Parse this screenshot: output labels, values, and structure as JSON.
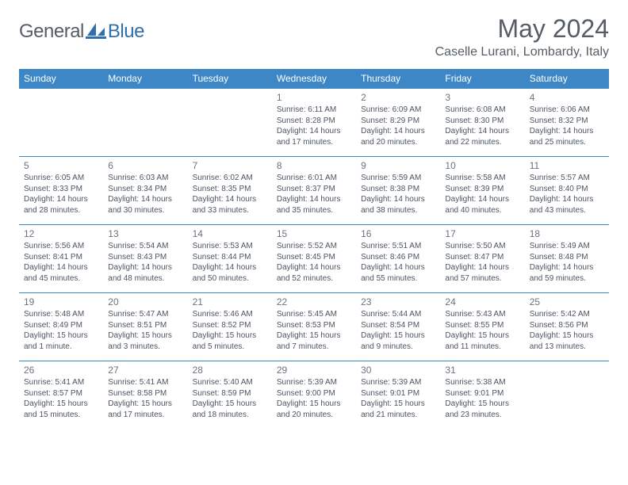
{
  "brand": {
    "name_part1": "General",
    "name_part2": "Blue"
  },
  "title": "May 2024",
  "location": "Caselle Lurani, Lombardy, Italy",
  "colors": {
    "header_bg": "#3d87c7",
    "header_text": "#ffffff",
    "border": "#3d87c7",
    "text_muted": "#555d66",
    "daynum": "#6b7280",
    "details": "#4b5563",
    "logo_accent": "#2f6fae"
  },
  "weekdays": [
    "Sunday",
    "Monday",
    "Tuesday",
    "Wednesday",
    "Thursday",
    "Friday",
    "Saturday"
  ],
  "cells": [
    {
      "day": "",
      "sunrise": "",
      "sunset": "",
      "daylight": ""
    },
    {
      "day": "",
      "sunrise": "",
      "sunset": "",
      "daylight": ""
    },
    {
      "day": "",
      "sunrise": "",
      "sunset": "",
      "daylight": ""
    },
    {
      "day": "1",
      "sunrise": "Sunrise: 6:11 AM",
      "sunset": "Sunset: 8:28 PM",
      "daylight": "Daylight: 14 hours and 17 minutes."
    },
    {
      "day": "2",
      "sunrise": "Sunrise: 6:09 AM",
      "sunset": "Sunset: 8:29 PM",
      "daylight": "Daylight: 14 hours and 20 minutes."
    },
    {
      "day": "3",
      "sunrise": "Sunrise: 6:08 AM",
      "sunset": "Sunset: 8:30 PM",
      "daylight": "Daylight: 14 hours and 22 minutes."
    },
    {
      "day": "4",
      "sunrise": "Sunrise: 6:06 AM",
      "sunset": "Sunset: 8:32 PM",
      "daylight": "Daylight: 14 hours and 25 minutes."
    },
    {
      "day": "5",
      "sunrise": "Sunrise: 6:05 AM",
      "sunset": "Sunset: 8:33 PM",
      "daylight": "Daylight: 14 hours and 28 minutes."
    },
    {
      "day": "6",
      "sunrise": "Sunrise: 6:03 AM",
      "sunset": "Sunset: 8:34 PM",
      "daylight": "Daylight: 14 hours and 30 minutes."
    },
    {
      "day": "7",
      "sunrise": "Sunrise: 6:02 AM",
      "sunset": "Sunset: 8:35 PM",
      "daylight": "Daylight: 14 hours and 33 minutes."
    },
    {
      "day": "8",
      "sunrise": "Sunrise: 6:01 AM",
      "sunset": "Sunset: 8:37 PM",
      "daylight": "Daylight: 14 hours and 35 minutes."
    },
    {
      "day": "9",
      "sunrise": "Sunrise: 5:59 AM",
      "sunset": "Sunset: 8:38 PM",
      "daylight": "Daylight: 14 hours and 38 minutes."
    },
    {
      "day": "10",
      "sunrise": "Sunrise: 5:58 AM",
      "sunset": "Sunset: 8:39 PM",
      "daylight": "Daylight: 14 hours and 40 minutes."
    },
    {
      "day": "11",
      "sunrise": "Sunrise: 5:57 AM",
      "sunset": "Sunset: 8:40 PM",
      "daylight": "Daylight: 14 hours and 43 minutes."
    },
    {
      "day": "12",
      "sunrise": "Sunrise: 5:56 AM",
      "sunset": "Sunset: 8:41 PM",
      "daylight": "Daylight: 14 hours and 45 minutes."
    },
    {
      "day": "13",
      "sunrise": "Sunrise: 5:54 AM",
      "sunset": "Sunset: 8:43 PM",
      "daylight": "Daylight: 14 hours and 48 minutes."
    },
    {
      "day": "14",
      "sunrise": "Sunrise: 5:53 AM",
      "sunset": "Sunset: 8:44 PM",
      "daylight": "Daylight: 14 hours and 50 minutes."
    },
    {
      "day": "15",
      "sunrise": "Sunrise: 5:52 AM",
      "sunset": "Sunset: 8:45 PM",
      "daylight": "Daylight: 14 hours and 52 minutes."
    },
    {
      "day": "16",
      "sunrise": "Sunrise: 5:51 AM",
      "sunset": "Sunset: 8:46 PM",
      "daylight": "Daylight: 14 hours and 55 minutes."
    },
    {
      "day": "17",
      "sunrise": "Sunrise: 5:50 AM",
      "sunset": "Sunset: 8:47 PM",
      "daylight": "Daylight: 14 hours and 57 minutes."
    },
    {
      "day": "18",
      "sunrise": "Sunrise: 5:49 AM",
      "sunset": "Sunset: 8:48 PM",
      "daylight": "Daylight: 14 hours and 59 minutes."
    },
    {
      "day": "19",
      "sunrise": "Sunrise: 5:48 AM",
      "sunset": "Sunset: 8:49 PM",
      "daylight": "Daylight: 15 hours and 1 minute."
    },
    {
      "day": "20",
      "sunrise": "Sunrise: 5:47 AM",
      "sunset": "Sunset: 8:51 PM",
      "daylight": "Daylight: 15 hours and 3 minutes."
    },
    {
      "day": "21",
      "sunrise": "Sunrise: 5:46 AM",
      "sunset": "Sunset: 8:52 PM",
      "daylight": "Daylight: 15 hours and 5 minutes."
    },
    {
      "day": "22",
      "sunrise": "Sunrise: 5:45 AM",
      "sunset": "Sunset: 8:53 PM",
      "daylight": "Daylight: 15 hours and 7 minutes."
    },
    {
      "day": "23",
      "sunrise": "Sunrise: 5:44 AM",
      "sunset": "Sunset: 8:54 PM",
      "daylight": "Daylight: 15 hours and 9 minutes."
    },
    {
      "day": "24",
      "sunrise": "Sunrise: 5:43 AM",
      "sunset": "Sunset: 8:55 PM",
      "daylight": "Daylight: 15 hours and 11 minutes."
    },
    {
      "day": "25",
      "sunrise": "Sunrise: 5:42 AM",
      "sunset": "Sunset: 8:56 PM",
      "daylight": "Daylight: 15 hours and 13 minutes."
    },
    {
      "day": "26",
      "sunrise": "Sunrise: 5:41 AM",
      "sunset": "Sunset: 8:57 PM",
      "daylight": "Daylight: 15 hours and 15 minutes."
    },
    {
      "day": "27",
      "sunrise": "Sunrise: 5:41 AM",
      "sunset": "Sunset: 8:58 PM",
      "daylight": "Daylight: 15 hours and 17 minutes."
    },
    {
      "day": "28",
      "sunrise": "Sunrise: 5:40 AM",
      "sunset": "Sunset: 8:59 PM",
      "daylight": "Daylight: 15 hours and 18 minutes."
    },
    {
      "day": "29",
      "sunrise": "Sunrise: 5:39 AM",
      "sunset": "Sunset: 9:00 PM",
      "daylight": "Daylight: 15 hours and 20 minutes."
    },
    {
      "day": "30",
      "sunrise": "Sunrise: 5:39 AM",
      "sunset": "Sunset: 9:01 PM",
      "daylight": "Daylight: 15 hours and 21 minutes."
    },
    {
      "day": "31",
      "sunrise": "Sunrise: 5:38 AM",
      "sunset": "Sunset: 9:01 PM",
      "daylight": "Daylight: 15 hours and 23 minutes."
    },
    {
      "day": "",
      "sunrise": "",
      "sunset": "",
      "daylight": ""
    }
  ]
}
